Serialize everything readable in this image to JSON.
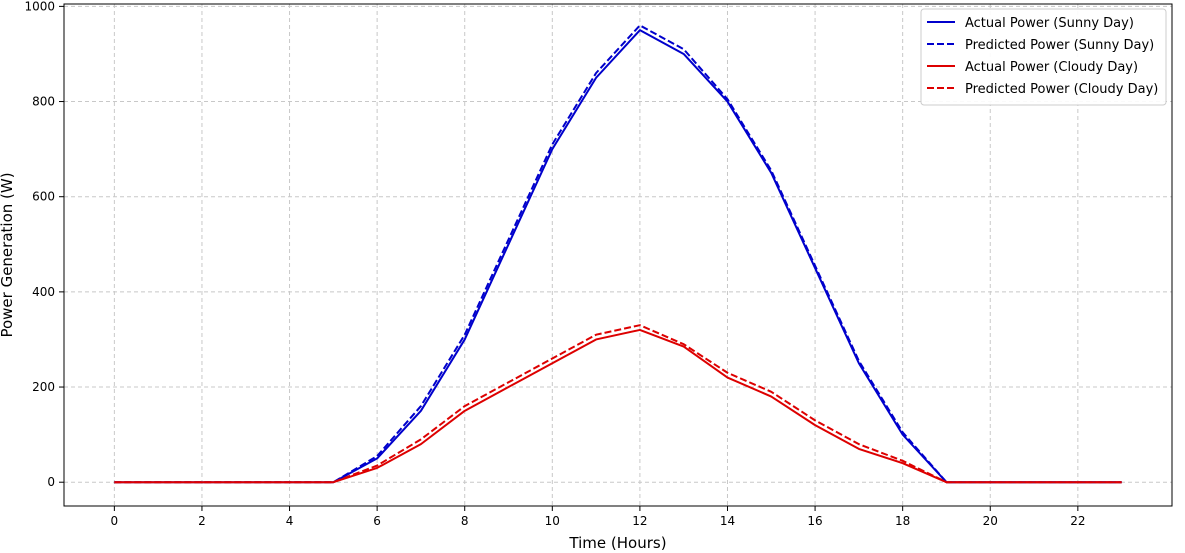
{
  "chart_data": {
    "type": "line",
    "title": "",
    "xlabel": "Time (Hours)",
    "ylabel": "Power Generation (W)",
    "xlim": [
      -1.15,
      24.15
    ],
    "ylim": [
      -50,
      1005
    ],
    "xticks": [
      0,
      2,
      4,
      6,
      8,
      10,
      12,
      14,
      16,
      18,
      20,
      22
    ],
    "yticks": [
      0,
      200,
      400,
      600,
      800,
      1000
    ],
    "grid": true,
    "legend_position": "top-right",
    "x": [
      0,
      1,
      2,
      3,
      4,
      5,
      6,
      7,
      8,
      9,
      10,
      11,
      12,
      13,
      14,
      15,
      16,
      17,
      18,
      19,
      20,
      21,
      22,
      23
    ],
    "series": [
      {
        "name": "Actual Power (Sunny Day)",
        "color": "#0000cc",
        "dash": "solid",
        "values": [
          0,
          0,
          0,
          0,
          0,
          0,
          50,
          150,
          300,
          500,
          700,
          850,
          950,
          900,
          800,
          650,
          450,
          250,
          100,
          0,
          0,
          0,
          0,
          0
        ]
      },
      {
        "name": "Predicted Power (Sunny Day)",
        "color": "#0000cc",
        "dash": "dashed",
        "values": [
          0,
          0,
          0,
          0,
          0,
          0,
          55,
          160,
          310,
          510,
          710,
          860,
          960,
          910,
          805,
          655,
          455,
          255,
          105,
          0,
          0,
          0,
          0,
          0
        ]
      },
      {
        "name": "Actual Power (Cloudy Day)",
        "color": "#dd0000",
        "dash": "solid",
        "values": [
          0,
          0,
          0,
          0,
          0,
          0,
          30,
          80,
          150,
          200,
          250,
          300,
          320,
          285,
          220,
          180,
          120,
          70,
          40,
          0,
          0,
          0,
          0,
          0
        ]
      },
      {
        "name": "Predicted Power (Cloudy Day)",
        "color": "#dd0000",
        "dash": "dashed",
        "values": [
          0,
          0,
          0,
          0,
          0,
          0,
          35,
          90,
          160,
          210,
          260,
          310,
          330,
          290,
          230,
          190,
          130,
          80,
          45,
          0,
          0,
          0,
          0,
          0
        ]
      }
    ]
  }
}
